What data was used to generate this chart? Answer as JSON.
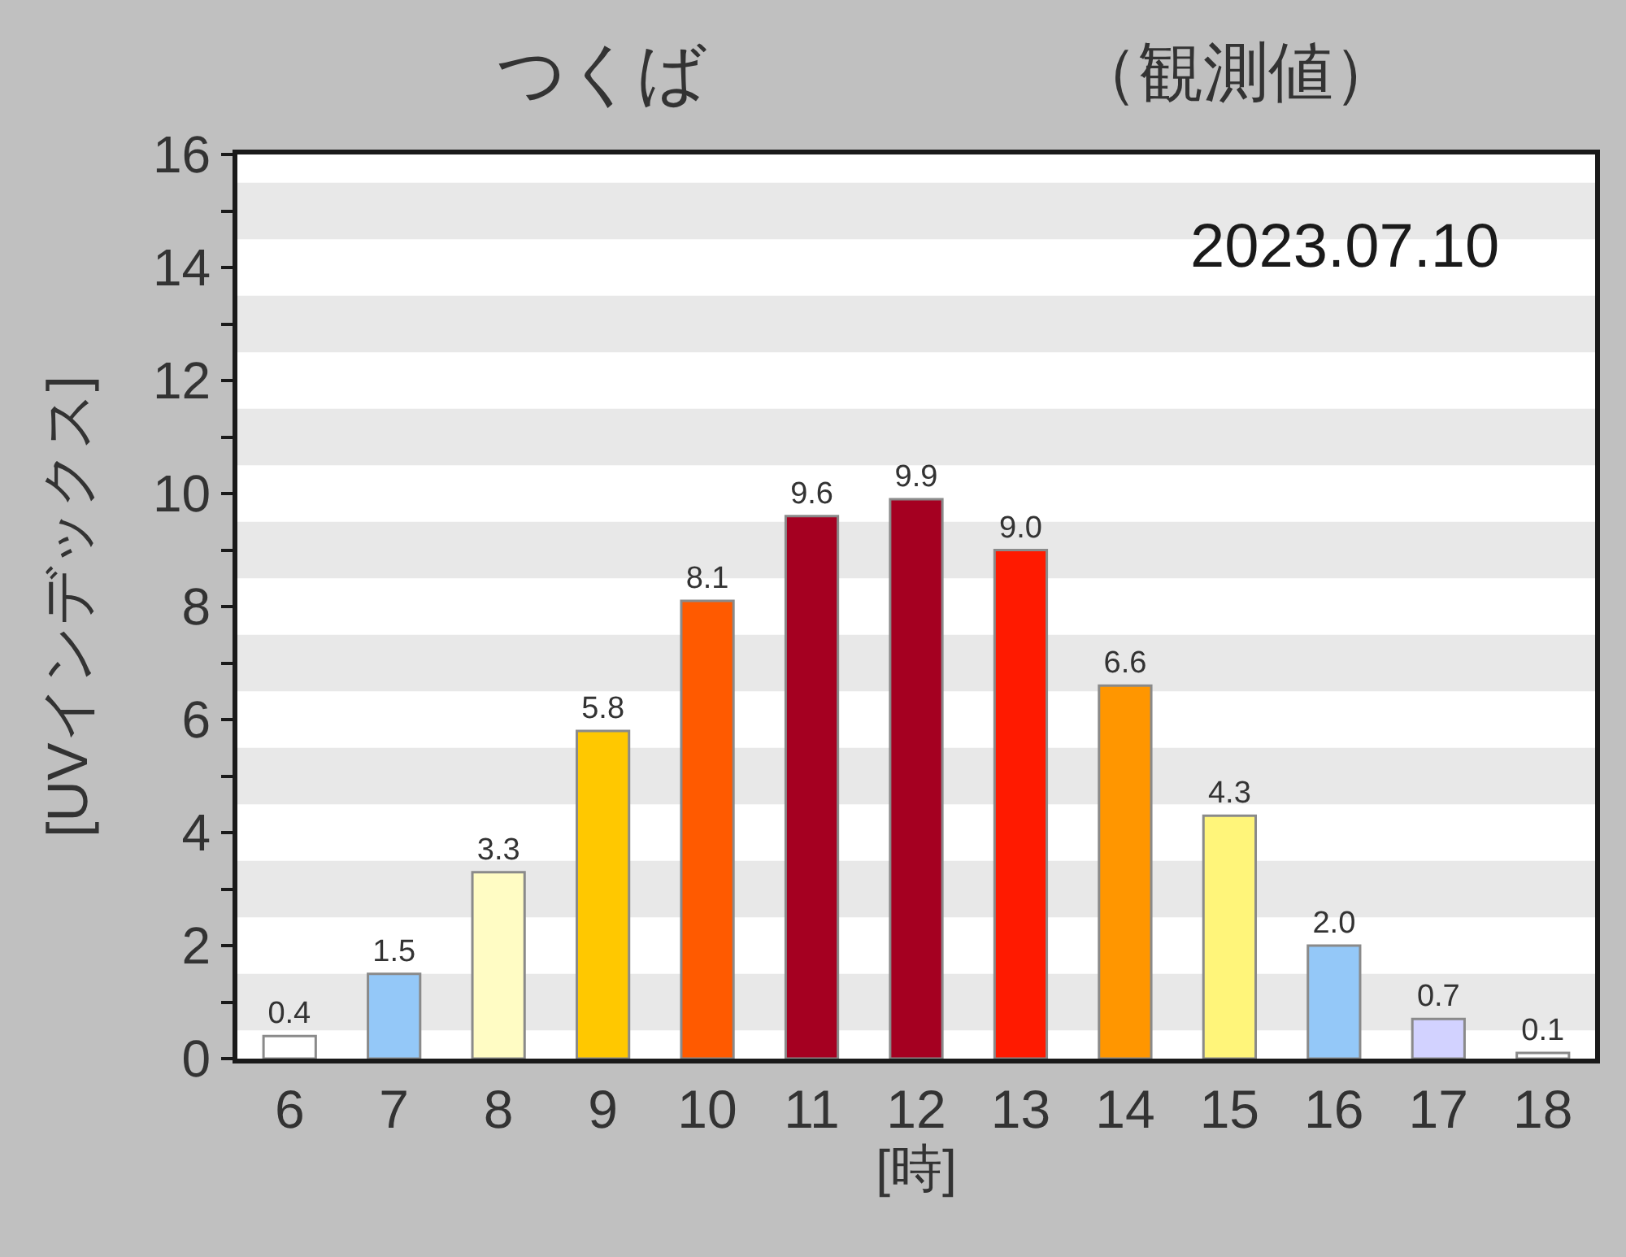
{
  "chart_data": {
    "type": "bar",
    "title": "つくば",
    "subtitle": "（観測値）",
    "xlabel": "[時]",
    "ylabel": "[UVインデックス]",
    "annotations": [
      "2023.07.10"
    ],
    "categories": [
      "6",
      "7",
      "8",
      "9",
      "10",
      "11",
      "12",
      "13",
      "14",
      "15",
      "16",
      "17",
      "18"
    ],
    "values": [
      0.4,
      1.5,
      3.3,
      5.8,
      8.1,
      9.6,
      9.9,
      9.0,
      6.6,
      4.3,
      2.0,
      0.7,
      0.1
    ],
    "value_labels": [
      "0.4",
      "1.5",
      "3.3",
      "5.8",
      "8.1",
      "9.6",
      "9.9",
      "9.0",
      "6.6",
      "4.3",
      "2.0",
      "0.7",
      "0.1"
    ],
    "colors": [
      "#ffffff",
      "#94c8f8",
      "#fffcc4",
      "#ffc800",
      "#ff5a00",
      "#a50021",
      "#a50021",
      "#ff1a00",
      "#ff9600",
      "#fff57a",
      "#94c8f8",
      "#d2d2ff",
      "#ffffff"
    ],
    "ylim": [
      0,
      16
    ],
    "yticks": [
      0,
      {
        "value": 1,
        "label": null
      },
      2,
      {
        "value": 3,
        "label": null
      },
      4,
      {
        "value": 5,
        "label": null
      },
      6,
      {
        "value": 7,
        "label": null
      },
      8,
      {
        "value": 9,
        "label": null
      },
      10,
      {
        "value": 11,
        "label": null
      },
      12,
      {
        "value": 13,
        "label": null
      },
      14,
      {
        "value": 15,
        "label": null
      },
      16
    ],
    "bands": [
      {
        "axis": "y",
        "from": 0.5,
        "to": 1.5,
        "color": "#e8e8e8"
      },
      {
        "axis": "y",
        "from": 2.5,
        "to": 3.5,
        "color": "#e8e8e8"
      },
      {
        "axis": "y",
        "from": 4.5,
        "to": 5.5,
        "color": "#e8e8e8"
      },
      {
        "axis": "y",
        "from": 6.5,
        "to": 7.5,
        "color": "#e8e8e8"
      },
      {
        "axis": "y",
        "from": 8.5,
        "to": 9.5,
        "color": "#e8e8e8"
      },
      {
        "axis": "y",
        "from": 10.5,
        "to": 11.5,
        "color": "#e8e8e8"
      },
      {
        "axis": "y",
        "from": 12.5,
        "to": 13.5,
        "color": "#e8e8e8"
      },
      {
        "axis": "y",
        "from": 14.5,
        "to": 15.5,
        "color": "#e8e8e8"
      }
    ],
    "grid": false
  }
}
